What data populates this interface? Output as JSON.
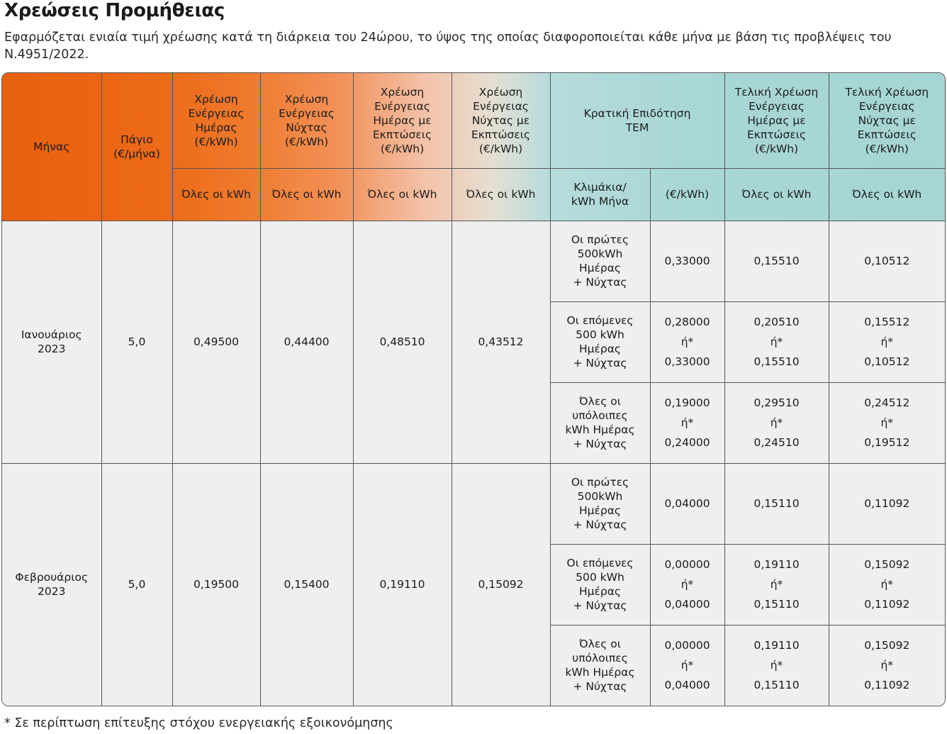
{
  "page": {
    "title": "Χρεώσεις Προμήθειας",
    "subtitle": "Εφαρμόζεται ενιαία τιμή χρέωσης κατά τη διάρκεια του 24ώρου, το ύψος της οποίας διαφοροποιείται κάθε μήνα με βάση τις προβλέψεις του Ν.4951/2022.",
    "footnote": "* Σε περίπτωση επίτευξης στόχου ενεργειακής εξοικονόμησης"
  },
  "table": {
    "headers": {
      "month": "Μήνας",
      "fixed": [
        "Πάγιο",
        "(€/μήνα)"
      ],
      "day": [
        "Χρέωση",
        "Ενέργειας",
        "Ημέρας",
        "(€/kWh)"
      ],
      "night": [
        "Χρέωση",
        "Ενέργειας",
        "Νύχτας",
        "(€/kWh)"
      ],
      "day_disc": [
        "Χρέωση",
        "Ενέργειας",
        "Ημέρας με",
        "Εκπτώσεις",
        "(€/kWh)"
      ],
      "night_disc": [
        "Χρέωση",
        "Ενέργειας",
        "Νύχτας με",
        "Εκπτώσεις",
        "(€/kWh)"
      ],
      "subsidy": [
        "Κρατική Επιδότηση",
        "ΤΕΜ"
      ],
      "final_day": [
        "Τελική Χρέωση",
        "Ενέργειας",
        "Ημέρας με",
        "Εκπτώσεις",
        "(€/kWh)"
      ],
      "final_night": [
        "Τελική Χρέωση",
        "Ενέργειας",
        "Νύχτας με",
        "Εκπτώσεις",
        "(€/kWh)"
      ],
      "all_kwh": "Όλες οι kWh",
      "tiers": [
        "Κλιμάκια/",
        "kWh Μήνα"
      ],
      "eur_kwh": "(€/kWh)",
      "or": "ή*"
    },
    "months": [
      {
        "name": [
          "Ιανουάριος",
          "2023"
        ],
        "fixed": "5,0",
        "day": "0,49500",
        "night": "0,44400",
        "day_disc": "0,48510",
        "night_disc": "0,43512",
        "tiers": [
          {
            "label": [
              "Οι πρώτες",
              "500kWh",
              "Ημέρας",
              "+ Νύχτας"
            ],
            "subsidy": [
              "0,33000"
            ],
            "final_day": [
              "0,15510"
            ],
            "final_night": [
              "0,10512"
            ]
          },
          {
            "label": [
              "Οι επόμενες",
              "500 kWh",
              "Ημέρας",
              "+ Νύχτας"
            ],
            "subsidy": [
              "0,28000",
              "0,33000"
            ],
            "final_day": [
              "0,20510",
              "0,15510"
            ],
            "final_night": [
              "0,15512",
              "0,10512"
            ]
          },
          {
            "label": [
              "Όλες οι",
              "υπόλοιπες",
              "kWh Ημέρας",
              "+ Νύχτας"
            ],
            "subsidy": [
              "0,19000",
              "0,24000"
            ],
            "final_day": [
              "0,29510",
              "0,24510"
            ],
            "final_night": [
              "0,24512",
              "0,19512"
            ]
          }
        ]
      },
      {
        "name": [
          "Φεβρουάριος",
          "2023"
        ],
        "fixed": "5,0",
        "day": "0,19500",
        "night": "0,15400",
        "day_disc": "0,19110",
        "night_disc": "0,15092",
        "tiers": [
          {
            "label": [
              "Οι πρώτες",
              "500kWh",
              "Ημέρας",
              "+ Νύχτας"
            ],
            "subsidy": [
              "0,04000"
            ],
            "final_day": [
              "0,15110"
            ],
            "final_night": [
              "0,11092"
            ]
          },
          {
            "label": [
              "Οι επόμενες",
              "500 kWh",
              "Ημέρας",
              "+ Νύχτας"
            ],
            "subsidy": [
              "0,00000",
              "0,04000"
            ],
            "final_day": [
              "0,19110",
              "0,15110"
            ],
            "final_night": [
              "0,15092",
              "0,11092"
            ]
          },
          {
            "label": [
              "Όλες οι",
              "υπόλοιπες",
              "kWh Ημέρας",
              "+ Νύχτας"
            ],
            "subsidy": [
              "0,00000",
              "0,04000"
            ],
            "final_day": [
              "0,19110",
              "0,15110"
            ],
            "final_night": [
              "0,15092",
              "0,11092"
            ]
          }
        ]
      }
    ]
  }
}
